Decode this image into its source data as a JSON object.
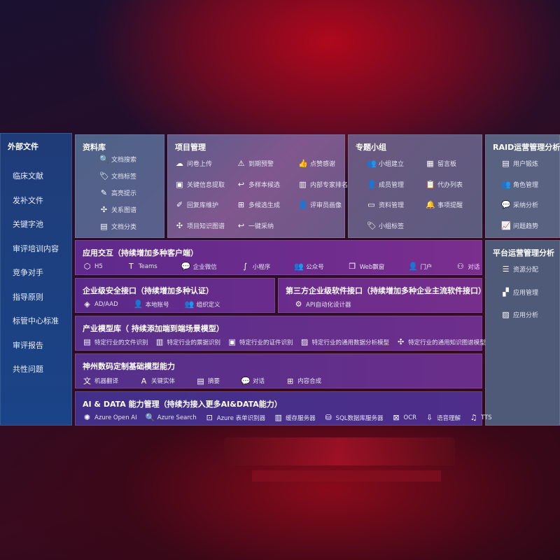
{
  "left": {
    "title": "外部文件",
    "items": [
      "临床文献",
      "发补文件",
      "关键字池",
      "审评培训内容",
      "竞争对手",
      "指导原则",
      "标管中心标准",
      "审评报告",
      "共性问题"
    ]
  },
  "library": {
    "title": "资料库",
    "items": [
      {
        "icon": "doc-search-icon",
        "g": "🔍",
        "label": "文档搜索"
      },
      {
        "icon": "tag-icon",
        "g": "🏷",
        "label": "文档标签"
      },
      {
        "icon": "pen-icon",
        "g": "✎",
        "label": "高亮提示"
      },
      {
        "icon": "graph-icon",
        "g": "✣",
        "label": "关系图谱"
      },
      {
        "icon": "doc-class-icon",
        "g": "▤",
        "label": "文档分类"
      }
    ]
  },
  "project": {
    "title": "项目管理",
    "items": [
      {
        "icon": "cloud-upload-icon",
        "g": "☁",
        "label": "问卷上传"
      },
      {
        "icon": "alarm-icon",
        "g": "⚠",
        "label": "到期预警"
      },
      {
        "icon": "thumbs-up-icon",
        "g": "👍",
        "label": "点赞感谢"
      },
      {
        "icon": "extract-icon",
        "g": "▣",
        "label": "关键信息提取"
      },
      {
        "icon": "reply-icon",
        "g": "↩",
        "label": "多样本候选"
      },
      {
        "icon": "rank-icon",
        "g": "▥",
        "label": "内部专家排名"
      },
      {
        "icon": "edit-icon",
        "g": "✐",
        "label": "回复库维护"
      },
      {
        "icon": "puzzle-icon",
        "g": "⊞",
        "label": "多候选生成"
      },
      {
        "icon": "user-icon",
        "g": "👤",
        "label": "评审员画像"
      },
      {
        "icon": "graph-icon",
        "g": "✣",
        "label": "项目知识图谱"
      },
      {
        "icon": "reply-icon",
        "g": "↩",
        "label": "一键采纳"
      }
    ]
  },
  "topic": {
    "title": "专题小组",
    "items": [
      {
        "icon": "group-icon",
        "g": "👥",
        "label": "小组建立"
      },
      {
        "icon": "bbs-icon",
        "g": "▦",
        "label": "留言板"
      },
      {
        "icon": "member-icon",
        "g": "👤",
        "label": "成员管理"
      },
      {
        "icon": "clipboard-icon",
        "g": "📋",
        "label": "代办列表"
      },
      {
        "icon": "folder-icon",
        "g": "▭",
        "label": "资料管理"
      },
      {
        "icon": "bell-icon",
        "g": "🔔",
        "label": "事项提醒"
      },
      {
        "icon": "tag-icon",
        "g": "🏷",
        "label": "小组标签"
      }
    ]
  },
  "raid": {
    "title": "RAID运营管理分析",
    "items": [
      {
        "icon": "id-card-icon",
        "g": "▤",
        "label": "用户锻炼"
      },
      {
        "icon": "group-icon",
        "g": "👥",
        "label": "角色管理"
      },
      {
        "icon": "qa-icon",
        "g": "💬",
        "label": "采纳分析"
      },
      {
        "icon": "trend-icon",
        "g": "📈",
        "label": "问题趋势"
      }
    ]
  },
  "platform": {
    "title": "平台运营管理分析",
    "items": [
      {
        "icon": "list-icon",
        "g": "☰",
        "label": "资源分配"
      },
      {
        "icon": "apps-icon",
        "g": "▞",
        "label": "应用管理"
      },
      {
        "icon": "chart-icon",
        "g": "▨",
        "label": "应用分析"
      }
    ]
  },
  "app": {
    "title": "应用交互（持续增加多种客户端）",
    "items": [
      {
        "icon": "html5-icon",
        "g": "⬡",
        "label": "H5"
      },
      {
        "icon": "teams-icon",
        "g": "T",
        "label": "Teams"
      },
      {
        "icon": "wechat-work-icon",
        "g": "💬",
        "label": "企业微信"
      },
      {
        "icon": "mini-program-icon",
        "g": "∫",
        "label": "小程序"
      },
      {
        "icon": "public-account-icon",
        "g": "👥",
        "label": "公众号"
      },
      {
        "icon": "window-icon",
        "g": "❐",
        "label": "Web飘窗"
      },
      {
        "icon": "portal-icon",
        "g": "👤",
        "label": "门户"
      },
      {
        "icon": "chat-icon",
        "g": "⚇",
        "label": "对话"
      }
    ]
  },
  "security": {
    "title": "企业级安全接口（持续增加多种认证）",
    "items": [
      {
        "icon": "ad-icon",
        "g": "◈",
        "label": "AD/AAD"
      },
      {
        "icon": "local-account-icon",
        "g": "👤",
        "label": "本地账号"
      },
      {
        "icon": "org-icon",
        "g": "👥",
        "label": "组织定义"
      }
    ]
  },
  "third": {
    "title": "第三方企业级软件接口（持续增加多种企业主流软件接口）",
    "items": [
      {
        "icon": "gear-icon",
        "g": "⚙",
        "label": "API自动化设计器"
      }
    ]
  },
  "industry": {
    "title": "产业模型库（ 持续添加端到端场景模型）",
    "items": [
      {
        "icon": "file-icon",
        "g": "▤",
        "label": "特定行业的文件识别"
      },
      {
        "icon": "receipt-icon",
        "g": "▥",
        "label": "特定行业的票据识别"
      },
      {
        "icon": "id-card-icon",
        "g": "▣",
        "label": "特定行业的证件识别"
      },
      {
        "icon": "image-icon",
        "g": "▨",
        "label": "特定行业的通用数据分析模型"
      },
      {
        "icon": "graph-icon",
        "g": "✣",
        "label": "特定行业的通用知识图谱模型"
      }
    ]
  },
  "base": {
    "title": "神州数码定制基础模型能力",
    "items": [
      {
        "icon": "translate-icon",
        "g": "文",
        "label": "机器翻译"
      },
      {
        "icon": "entity-icon",
        "g": "A",
        "label": "关键实体"
      },
      {
        "icon": "summary-icon",
        "g": "▤",
        "label": "摘要"
      },
      {
        "icon": "chat-icon",
        "g": "💬",
        "label": "对话"
      },
      {
        "icon": "puzzle-icon",
        "g": "⊞",
        "label": "内容合成"
      }
    ]
  },
  "ai": {
    "title": "AI & DATA 能力管理（持续为接入更多AI&DATA能力）",
    "items": [
      {
        "icon": "openai-icon",
        "g": "✺",
        "label": "Azure Open AI"
      },
      {
        "icon": "search-icon",
        "g": "🔍",
        "label": "Azure Search"
      },
      {
        "icon": "form-icon",
        "g": "⊡",
        "label": "Azure 表单识别器"
      },
      {
        "icon": "cache-icon",
        "g": "▥",
        "label": "缓存服务器"
      },
      {
        "icon": "database-icon",
        "g": "⛁",
        "label": "SQL数据库服务器"
      },
      {
        "icon": "ocr-icon",
        "g": "⊠",
        "label": "OCR"
      },
      {
        "icon": "speech-icon",
        "g": "⇩",
        "label": "语音理解"
      },
      {
        "icon": "tts-icon",
        "g": "♫",
        "label": "TTS"
      }
    ]
  }
}
